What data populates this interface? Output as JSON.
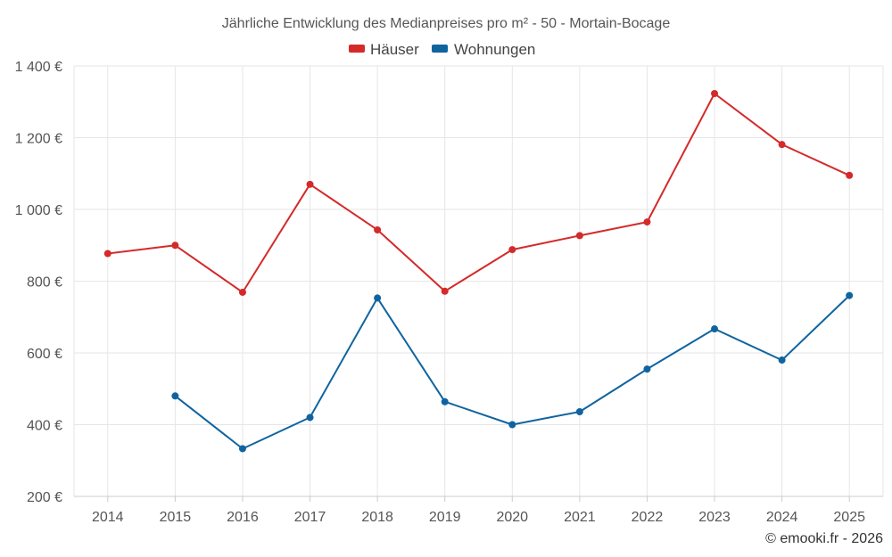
{
  "chart_data": {
    "type": "line",
    "title": "Jährliche Entwicklung des Medianpreises pro m² - 50 - Mortain-Bocage",
    "categories": [
      "2014",
      "2015",
      "2016",
      "2017",
      "2018",
      "2019",
      "2020",
      "2021",
      "2022",
      "2023",
      "2024",
      "2025"
    ],
    "series": [
      {
        "name": "Häuser",
        "color": "#d42a2a",
        "values": [
          877,
          900,
          769,
          1070,
          943,
          772,
          888,
          927,
          965,
          1323,
          1181,
          1095
        ]
      },
      {
        "name": "Wohnungen",
        "color": "#0f64a0",
        "values": [
          null,
          480,
          333,
          420,
          753,
          464,
          400,
          436,
          555,
          667,
          580,
          760
        ]
      }
    ],
    "ylim": [
      200,
      1400
    ],
    "yticks": [
      200,
      400,
      600,
      800,
      1000,
      1200,
      1400
    ],
    "ytick_labels": [
      "200 €",
      "400 €",
      "600 €",
      "800 €",
      "1 000 €",
      "1 200 €",
      "1 400 €"
    ],
    "xlabel": "",
    "ylabel": "",
    "grid": true,
    "legend_position": "top-center"
  },
  "credit": "© emooki.fr - 2026"
}
